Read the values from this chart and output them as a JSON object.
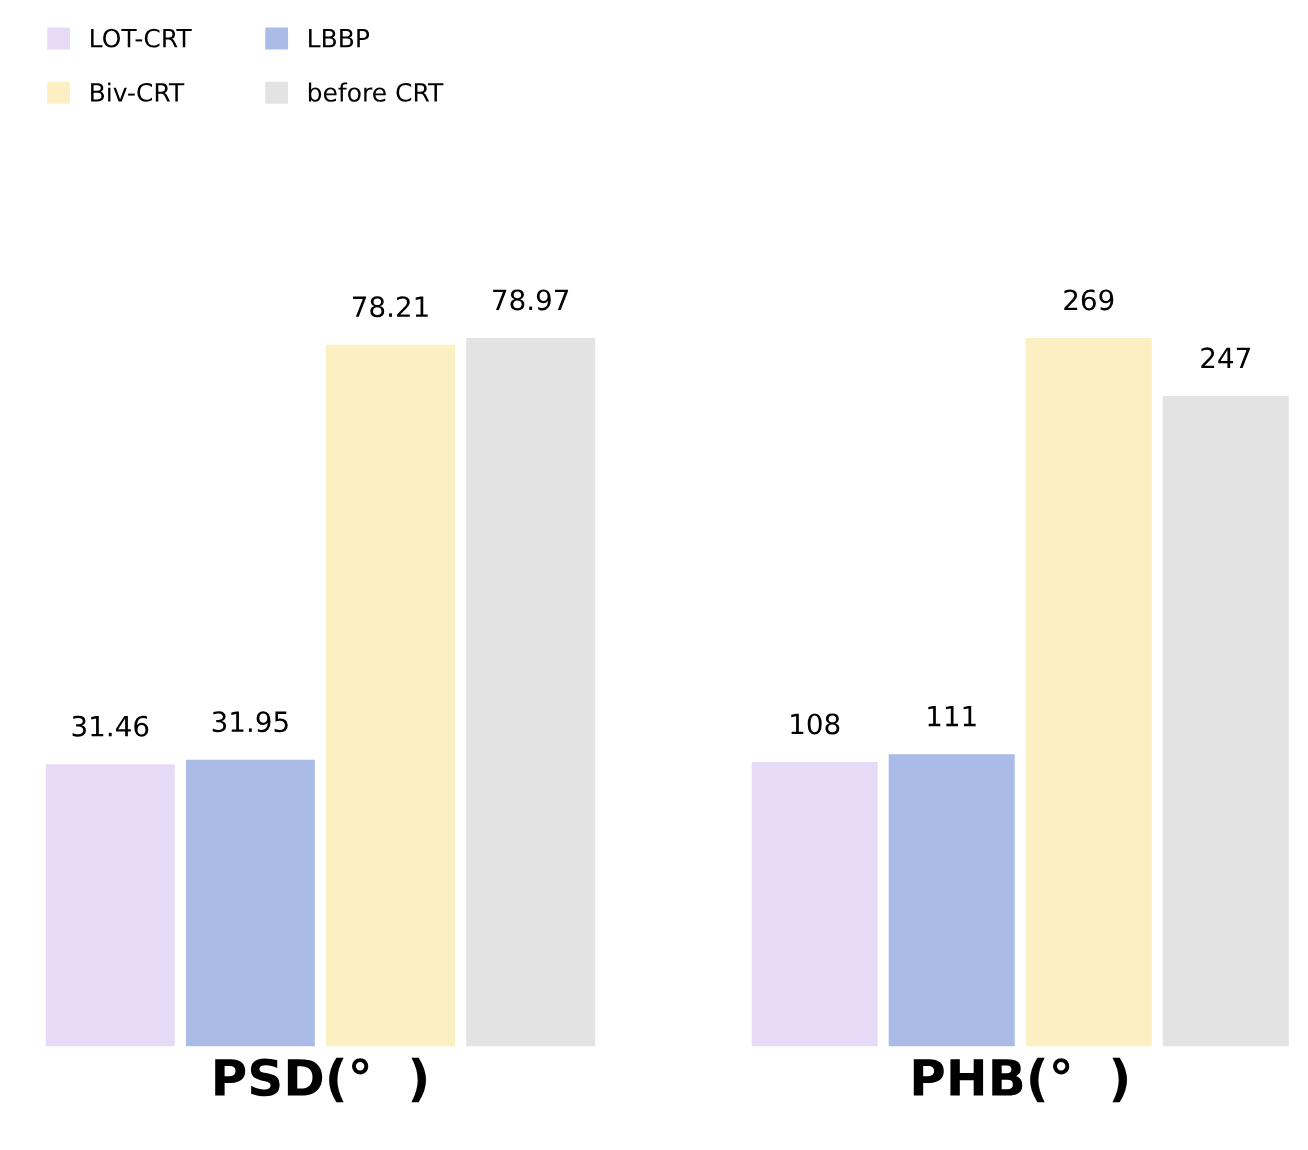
{
  "chart_data": [
    {
      "type": "bar",
      "xlabel": "PSD(°  )",
      "categories": [
        null
      ],
      "data_labels": true,
      "legend": "top left",
      "series": [
        {
          "name": "LOT-CRT",
          "color": "#e6daf6",
          "values": [
            31.46
          ]
        },
        {
          "name": "LBBP",
          "color": "#a9bbe6",
          "values": [
            31.95
          ]
        },
        {
          "name": "Biv-CRT",
          "color": "#fcefc2",
          "values": [
            78.21
          ]
        },
        {
          "name": "before CRT",
          "color": "#e3e3e3",
          "values": [
            78.97
          ]
        }
      ]
    },
    {
      "type": "bar",
      "xlabel": "PHB(°  )",
      "categories": [
        null
      ],
      "data_labels": true,
      "series": [
        {
          "color": "#e6daf6",
          "values": [
            108
          ]
        },
        {
          "color": "#a9bbe6",
          "values": [
            111
          ]
        },
        {
          "color": "#fcefc2",
          "values": [
            269
          ]
        },
        {
          "color": "#e3e3e3",
          "values": [
            247
          ]
        }
      ]
    }
  ]
}
